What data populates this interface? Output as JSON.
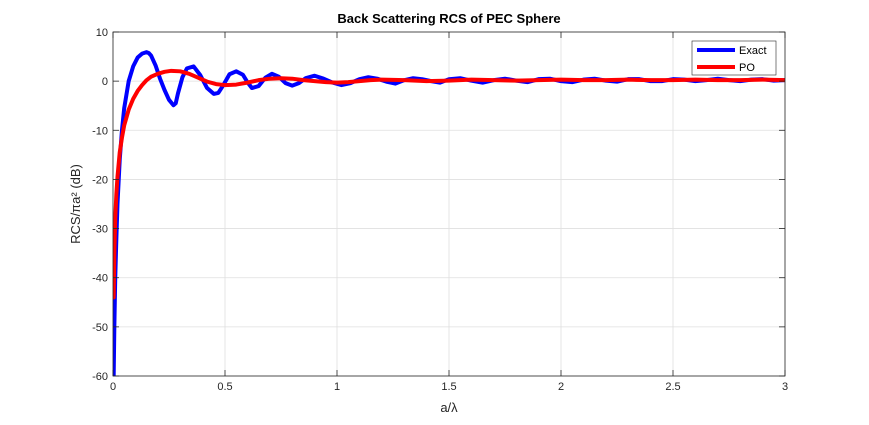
{
  "chart_data": {
    "type": "line",
    "title": "Back Scattering RCS of PEC Sphere",
    "xlabel": "a/λ",
    "ylabel": "RCS/πa² (dB)",
    "xlim": [
      0,
      3
    ],
    "ylim": [
      -60,
      10
    ],
    "xticks": [
      0,
      0.5,
      1,
      1.5,
      2,
      2.5,
      3
    ],
    "xtick_labels": [
      "0",
      "0.5",
      "1",
      "1.5",
      "2",
      "2.5",
      "3"
    ],
    "yticks": [
      -60,
      -50,
      -40,
      -30,
      -20,
      -10,
      0,
      10
    ],
    "ytick_labels": [
      "-60",
      "-50",
      "-40",
      "-30",
      "-20",
      "-10",
      "0",
      "10"
    ],
    "grid": true,
    "legend_location": "top-right",
    "series": [
      {
        "name": "Exact",
        "color": "#0000ff",
        "x": [
          0.003,
          0.006,
          0.01,
          0.015,
          0.02,
          0.03,
          0.04,
          0.05,
          0.07,
          0.09,
          0.11,
          0.13,
          0.15,
          0.16,
          0.17,
          0.19,
          0.21,
          0.23,
          0.25,
          0.27,
          0.28,
          0.29,
          0.31,
          0.33,
          0.36,
          0.39,
          0.42,
          0.45,
          0.47,
          0.49,
          0.52,
          0.55,
          0.58,
          0.6,
          0.62,
          0.65,
          0.68,
          0.71,
          0.74,
          0.77,
          0.8,
          0.83,
          0.86,
          0.9,
          0.94,
          0.98,
          1.02,
          1.06,
          1.1,
          1.14,
          1.18,
          1.22,
          1.26,
          1.3,
          1.34,
          1.38,
          1.42,
          1.46,
          1.5,
          1.55,
          1.6,
          1.65,
          1.7,
          1.75,
          1.8,
          1.85,
          1.9,
          1.95,
          2.0,
          2.05,
          2.1,
          2.15,
          2.2,
          2.25,
          2.3,
          2.35,
          2.4,
          2.45,
          2.5,
          2.55,
          2.6,
          2.65,
          2.7,
          2.75,
          2.8,
          2.85,
          2.9,
          2.95,
          3.0
        ],
        "y": [
          -60,
          -50,
          -40,
          -32,
          -25,
          -16,
          -10,
          -5.5,
          0,
          3,
          4.8,
          5.6,
          5.9,
          5.7,
          5.2,
          3.2,
          0.5,
          -1.8,
          -3.8,
          -4.9,
          -4.5,
          -2.5,
          0.8,
          2.6,
          3.0,
          1.2,
          -1.4,
          -2.6,
          -2.4,
          -1.0,
          1.4,
          2.0,
          1.3,
          -0.2,
          -1.4,
          -1.0,
          0.7,
          1.5,
          0.9,
          -0.4,
          -0.9,
          -0.4,
          0.6,
          1.1,
          0.5,
          -0.3,
          -0.8,
          -0.4,
          0.4,
          0.8,
          0.5,
          -0.1,
          -0.5,
          0.2,
          0.6,
          0.4,
          0.0,
          -0.3,
          0.4,
          0.6,
          0.1,
          -0.3,
          0.2,
          0.5,
          0.1,
          -0.2,
          0.4,
          0.5,
          0.0,
          -0.2,
          0.3,
          0.5,
          0.1,
          -0.1,
          0.4,
          0.4,
          0.0,
          0.0,
          0.4,
          0.3,
          0.0,
          0.2,
          0.5,
          0.2,
          0.0,
          0.3,
          0.4,
          0.1,
          0.2
        ]
      },
      {
        "name": "PO",
        "color": "#ff0000",
        "x": [
          0.003,
          0.006,
          0.01,
          0.015,
          0.02,
          0.03,
          0.04,
          0.05,
          0.07,
          0.09,
          0.11,
          0.13,
          0.15,
          0.17,
          0.2,
          0.23,
          0.26,
          0.3,
          0.34,
          0.38,
          0.42,
          0.46,
          0.5,
          0.55,
          0.6,
          0.65,
          0.7,
          0.75,
          0.8,
          0.85,
          0.9,
          0.95,
          1.0,
          1.05,
          1.1,
          1.15,
          1.2,
          1.3,
          1.4,
          1.5,
          1.6,
          1.7,
          1.8,
          1.9,
          2.0,
          2.1,
          2.2,
          2.3,
          2.4,
          2.5,
          2.6,
          2.7,
          2.8,
          2.9,
          3.0
        ],
        "y": [
          -44,
          -35,
          -28,
          -23,
          -19.5,
          -14.5,
          -11.5,
          -9,
          -5.8,
          -3.6,
          -2.0,
          -0.8,
          0.2,
          0.9,
          1.5,
          1.9,
          2.1,
          2.0,
          1.5,
          0.7,
          -0.1,
          -0.6,
          -0.8,
          -0.7,
          -0.3,
          0.2,
          0.5,
          0.6,
          0.5,
          0.2,
          0.0,
          -0.2,
          -0.3,
          -0.2,
          0.0,
          0.2,
          0.3,
          0.2,
          0.0,
          0.1,
          0.3,
          0.2,
          0.1,
          0.2,
          0.3,
          0.2,
          0.2,
          0.3,
          0.2,
          0.2,
          0.3,
          0.2,
          0.2,
          0.3,
          0.2
        ]
      }
    ]
  }
}
